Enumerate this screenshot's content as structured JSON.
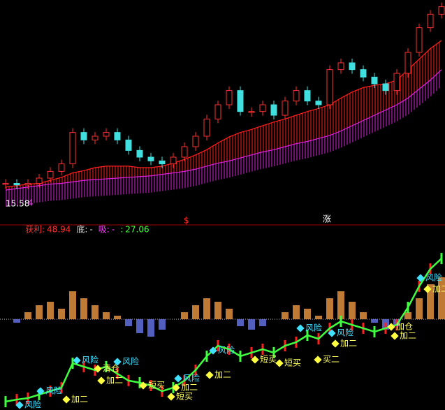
{
  "price_panel": {
    "ylim": [
      14,
      42
    ],
    "low_label": 15.58,
    "low_marker": "4",
    "signal_dollar": "$",
    "signal_up": "涨",
    "close": [
      17.5,
      17.3,
      17.5,
      18.2,
      19.1,
      20.1,
      24.3,
      23.3,
      23.8,
      24.3,
      23.3,
      21.9,
      21.0,
      20.5,
      20.1,
      21.0,
      22.4,
      23.8,
      26.1,
      28.0,
      29.9,
      27.1,
      27.1,
      28.0,
      26.6,
      28.5,
      29.9,
      28.5,
      28.0,
      32.7,
      33.6,
      32.7,
      31.7,
      30.8,
      29.9,
      32.2,
      35.0,
      38.3,
      40.1,
      41.1
    ],
    "ma_fast": {
      "color": "#ff2020",
      "values": [
        17.0,
        17.2,
        17.4,
        17.5,
        17.9,
        18.3,
        18.9,
        19.2,
        19.6,
        19.8,
        19.8,
        19.8,
        19.6,
        19.6,
        19.8,
        20.2,
        20.7,
        21.3,
        22.0,
        22.9,
        23.7,
        24.3,
        24.7,
        25.2,
        25.7,
        26.1,
        26.6,
        27.1,
        27.5,
        28.0,
        28.9,
        29.7,
        30.3,
        30.6,
        30.8,
        31.3,
        32.7,
        34.1,
        35.5,
        36.6
      ]
    },
    "ma_slow": {
      "color": "#e020e0",
      "values": [
        16.6,
        16.8,
        17.0,
        17.2,
        17.4,
        17.5,
        17.7,
        17.9,
        18.0,
        18.1,
        18.2,
        18.3,
        18.4,
        18.5,
        18.7,
        18.9,
        19.1,
        19.4,
        19.8,
        20.2,
        20.5,
        20.9,
        21.3,
        21.7,
        22.0,
        22.4,
        22.8,
        23.1,
        23.5,
        23.9,
        24.5,
        25.2,
        25.9,
        26.6,
        27.3,
        28.0,
        28.9,
        30.1,
        31.3,
        32.7
      ]
    }
  },
  "info": [
    {
      "label": "获利:",
      "value": 48.94,
      "color": "#ff3030"
    },
    {
      "label": "底:",
      "value": "-",
      "color": "#e0e0e0"
    },
    {
      "label": "吸:",
      "value": "-",
      "color": "#ff40ff"
    },
    {
      "label": ":",
      "value": 27.06,
      "color": "#40ff40"
    }
  ],
  "histogram": {
    "ylim": [
      -4,
      8
    ],
    "values": [
      0,
      -0.5,
      1,
      2,
      2.5,
      1.5,
      4,
      3,
      2,
      1,
      0.5,
      -1,
      -2,
      -2.5,
      -1.5,
      0,
      1,
      2,
      3,
      2.5,
      1.5,
      -1,
      -1.5,
      -1,
      0,
      1,
      2,
      1.5,
      0.5,
      3,
      4,
      2.5,
      1,
      -0.5,
      -1.5,
      -1,
      1,
      3,
      5,
      6
    ]
  },
  "signal_panel": {
    "ylim": [
      0,
      100
    ],
    "color": "#40ff40",
    "values": [
      5.2,
      6.5,
      7.4,
      9.6,
      11.7,
      13.9,
      29.1,
      27.0,
      24.8,
      27.0,
      22.6,
      18.3,
      17.0,
      15.2,
      11.7,
      13.9,
      18.3,
      24.8,
      33.5,
      40.0,
      37.8,
      33.5,
      35.7,
      37.8,
      35.7,
      40.0,
      42.2,
      46.5,
      44.3,
      50.9,
      55.2,
      53.0,
      50.9,
      48.7,
      50.9,
      53.0,
      63.9,
      77.0,
      87.8,
      94.3
    ],
    "annotations": [
      "风险",
      "风险",
      "加二",
      "风险",
      "清仓",
      "风险",
      "加二",
      "短买",
      "加二",
      "短买",
      "风险",
      "风险",
      "加二",
      "短买",
      "短买",
      "风险",
      "风险",
      "加二",
      "买二",
      "加仓",
      "加二",
      "风险",
      "加二"
    ]
  }
}
